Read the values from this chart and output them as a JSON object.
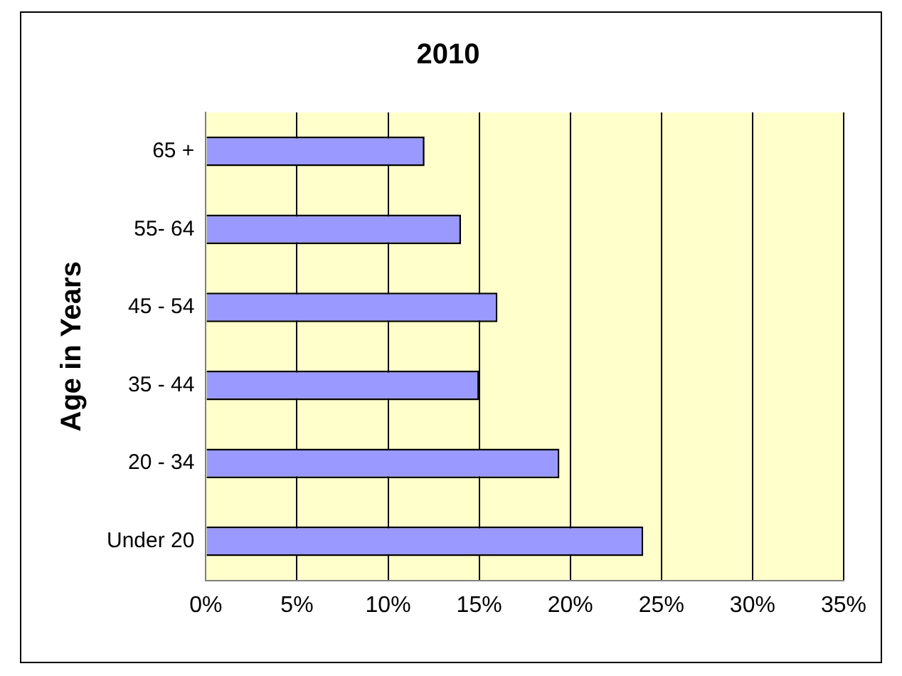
{
  "chart_data": {
    "type": "bar",
    "orientation": "horizontal",
    "title": "2010",
    "ylabel": "Age in Years",
    "categories": [
      "65 +",
      "55- 64",
      "45 - 54",
      "35 - 44",
      "20 - 34",
      "Under 20"
    ],
    "values": [
      12,
      14,
      16,
      15,
      19.4,
      24
    ],
    "color": "#9999ff",
    "xlim": [
      0,
      35
    ],
    "xticks": [
      {
        "value": 0,
        "label": "0%"
      },
      {
        "value": 5,
        "label": "5%"
      },
      {
        "value": 10,
        "label": "10%"
      },
      {
        "value": 15,
        "label": "15%"
      },
      {
        "value": 20,
        "label": "20%"
      },
      {
        "value": 25,
        "label": "25%"
      },
      {
        "value": 30,
        "label": "30%"
      },
      {
        "value": 35,
        "label": "35%"
      }
    ],
    "grid": "x",
    "legend": false
  }
}
